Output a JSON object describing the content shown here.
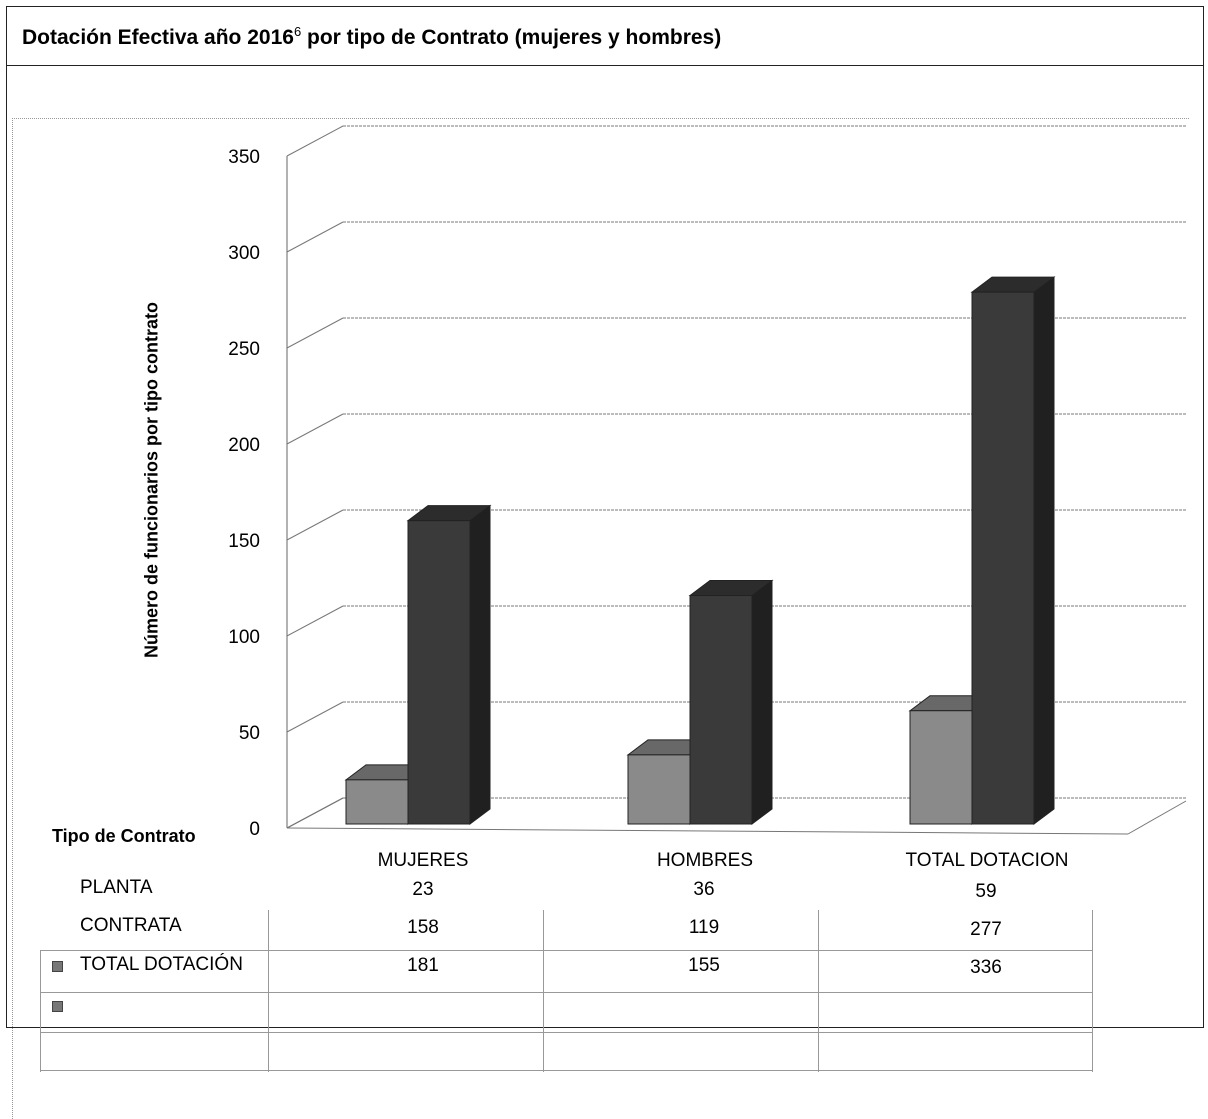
{
  "title": {
    "text": "Dotación Efectiva año 2016",
    "superscript": "6",
    "suffix": " por tipo de Contrato (mujeres y hombres)"
  },
  "colors": {
    "planta": "#8a8a8a",
    "contrata": "#3a3a3a"
  },
  "chart_data": {
    "type": "bar",
    "title": "Dotación Efectiva año 2016 por tipo de Contrato (mujeres y hombres)",
    "xlabel": "Tipo de Contrato",
    "ylabel": "Número de funcionarios por tipo contrato",
    "categories": [
      "MUJERES",
      "HOMBRES",
      "TOTAL DOTACION"
    ],
    "series": [
      {
        "name": "PLANTA",
        "values": [
          23,
          36,
          59
        ]
      },
      {
        "name": "CONTRATA",
        "values": [
          158,
          119,
          277
        ]
      }
    ],
    "ylim": [
      0,
      350
    ],
    "yticks": [
      0,
      50,
      100,
      150,
      200,
      250,
      300,
      350
    ],
    "grid": true
  },
  "table": {
    "rows": [
      {
        "label": "PLANTA",
        "values": [
          "23",
          "36",
          "59"
        ]
      },
      {
        "label": "CONTRATA",
        "values": [
          "158",
          "119",
          "277"
        ]
      },
      {
        "label": "TOTAL DOTACIÓN",
        "values": [
          "181",
          "155",
          "336"
        ]
      }
    ]
  }
}
